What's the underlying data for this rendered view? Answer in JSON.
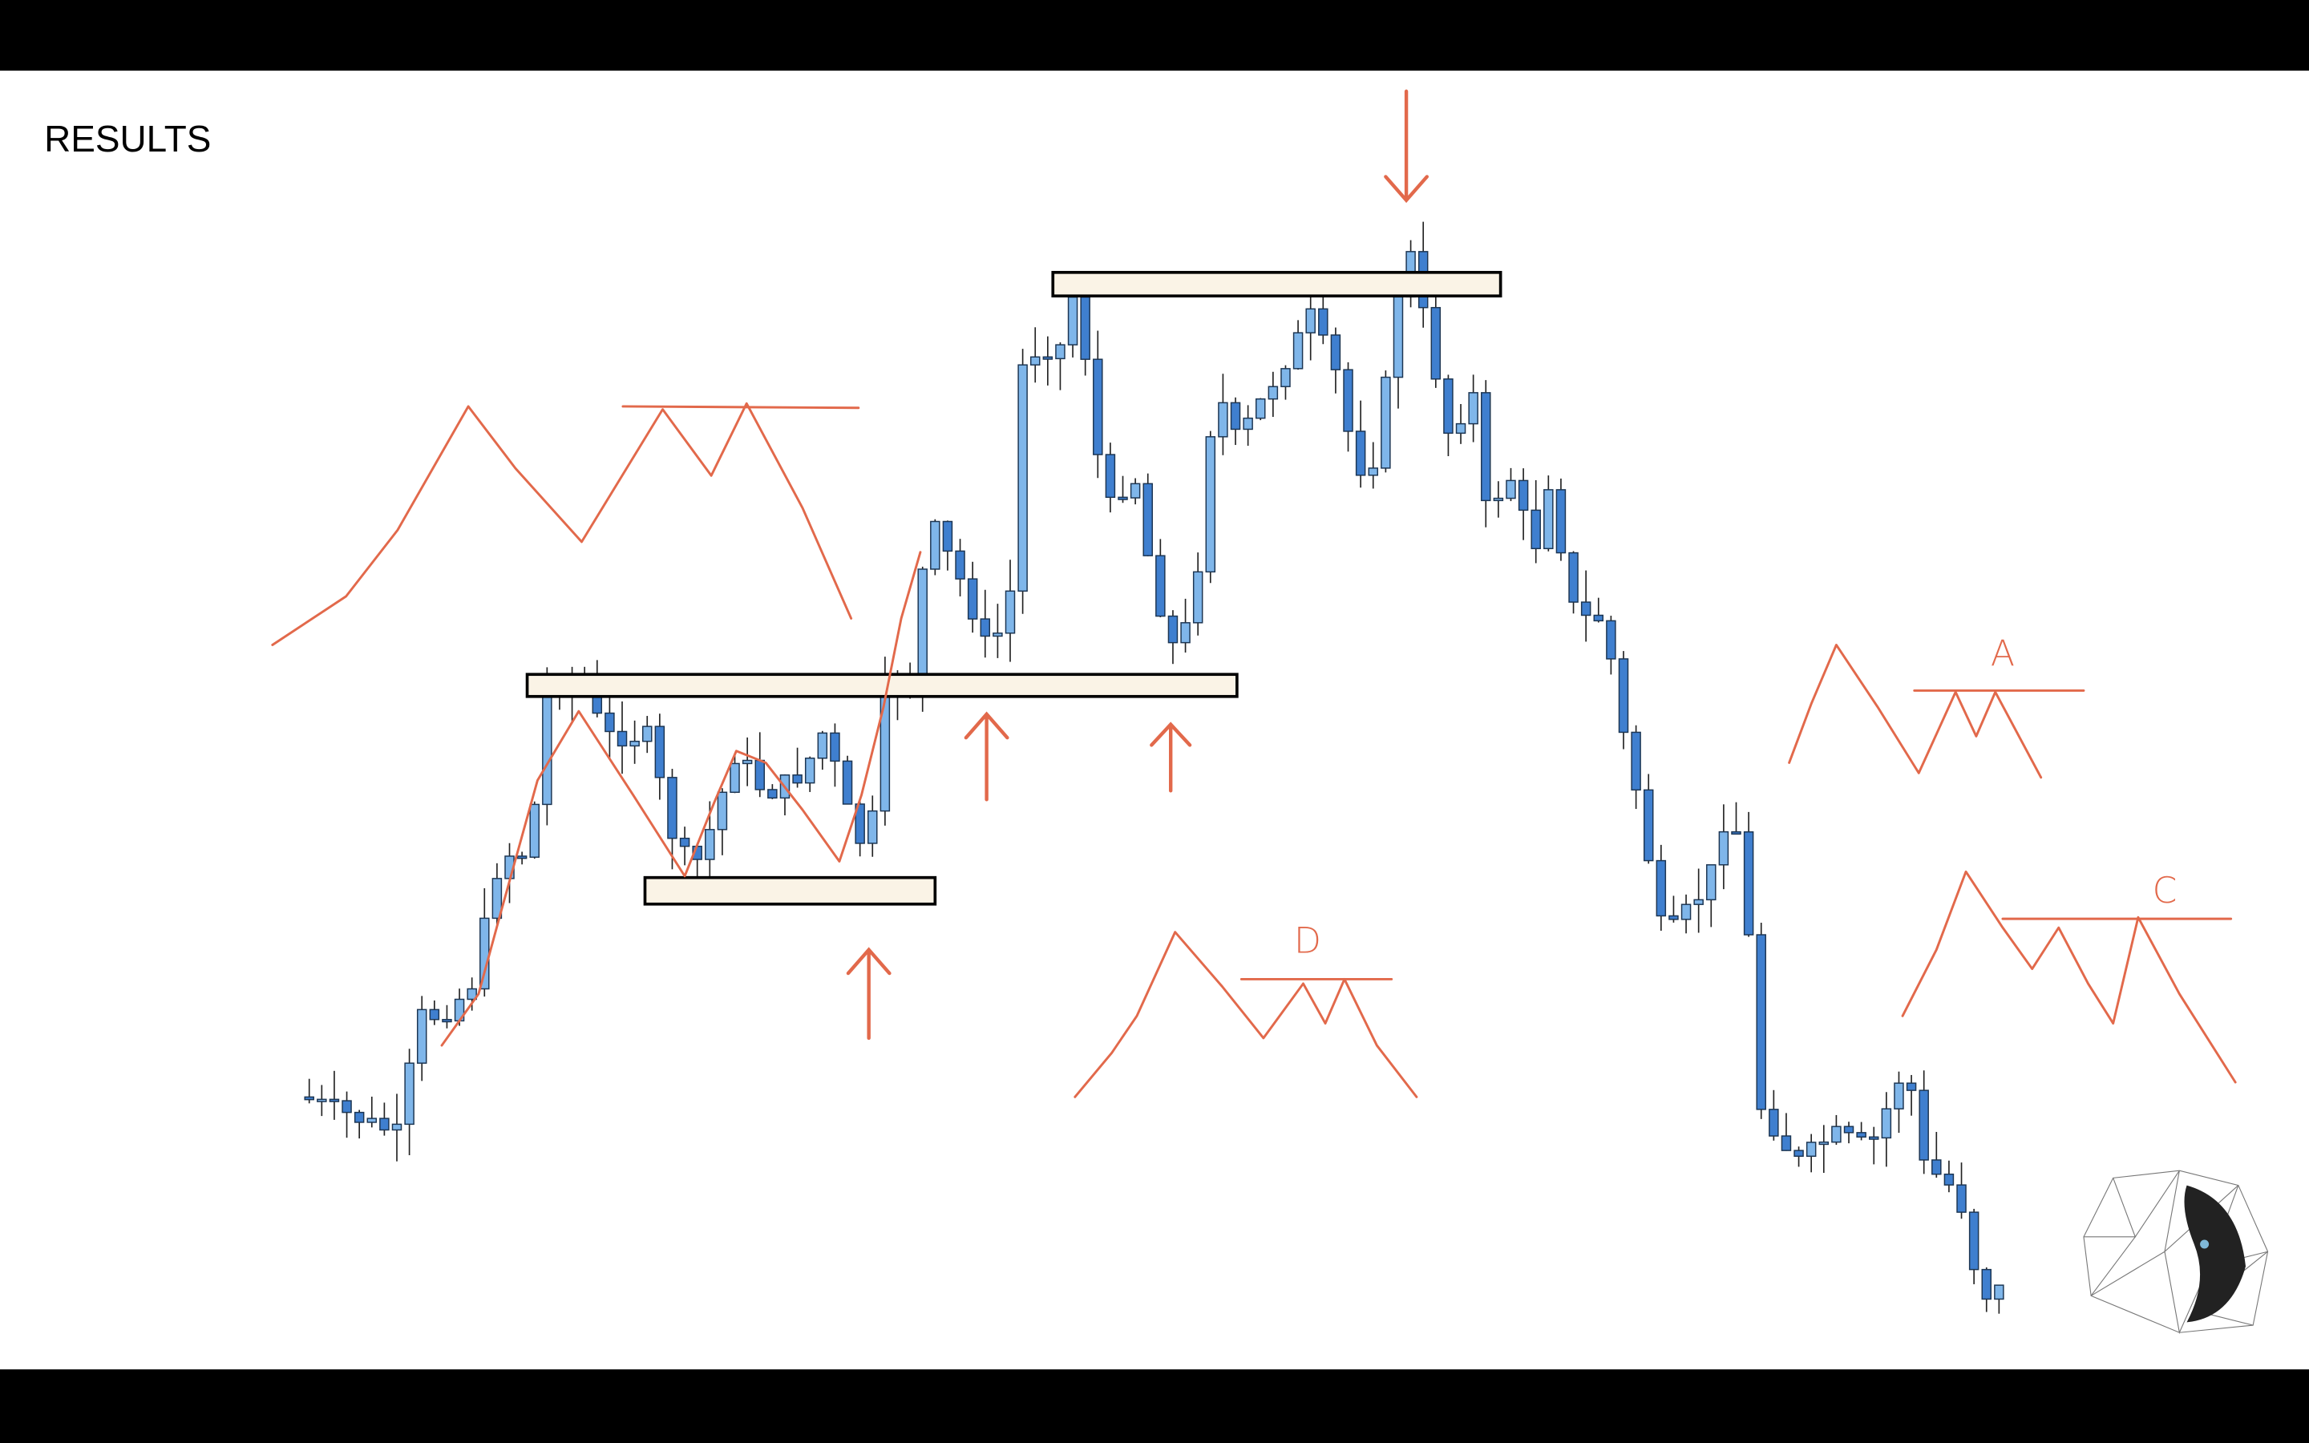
{
  "title": "RESULTS",
  "annotations": {
    "a": "A",
    "c": "C",
    "d": "D"
  }
}
